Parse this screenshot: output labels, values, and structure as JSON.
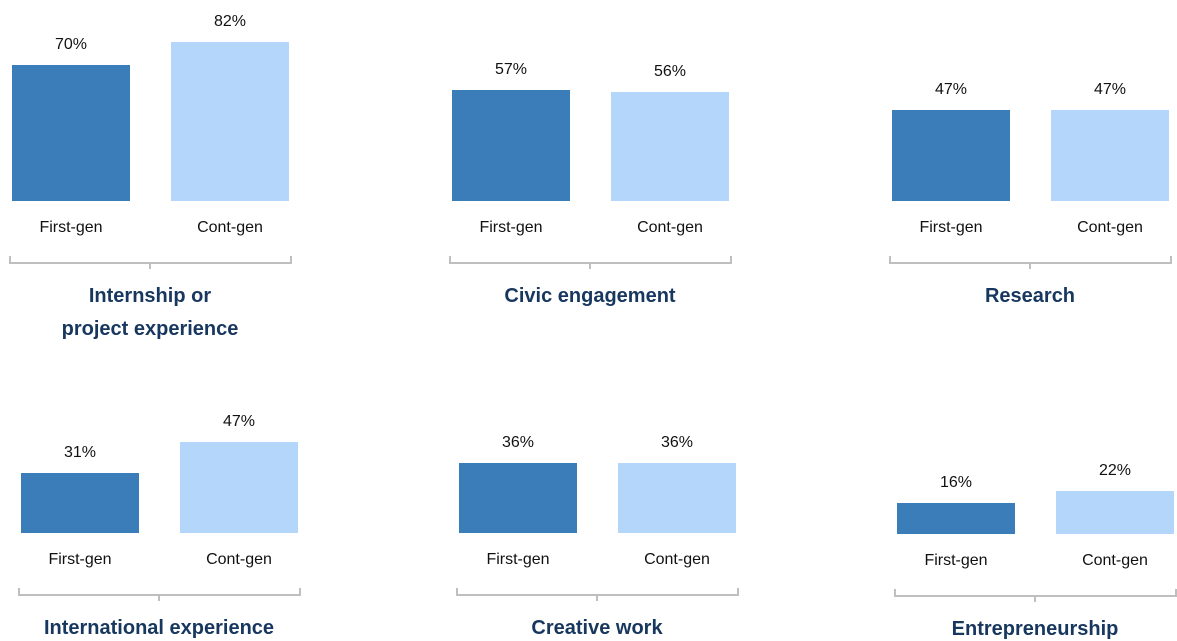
{
  "chart_data": [
    {
      "type": "bar",
      "title": "Internship or\nproject experience",
      "categories": [
        "First-gen",
        "Cont-gen"
      ],
      "values": [
        70,
        82
      ],
      "value_labels": [
        "70%",
        "82%"
      ],
      "colors": [
        "#3a7db8",
        "#b4d6fb"
      ]
    },
    {
      "type": "bar",
      "title": "Civic engagement",
      "categories": [
        "First-gen",
        "Cont-gen"
      ],
      "values": [
        57,
        56
      ],
      "value_labels": [
        "57%",
        "56%"
      ],
      "colors": [
        "#3a7db8",
        "#b4d6fb"
      ]
    },
    {
      "type": "bar",
      "title": "Research",
      "categories": [
        "First-gen",
        "Cont-gen"
      ],
      "values": [
        47,
        47
      ],
      "value_labels": [
        "47%",
        "47%"
      ],
      "colors": [
        "#3a7db8",
        "#b4d6fb"
      ]
    },
    {
      "type": "bar",
      "title": "International experience",
      "categories": [
        "First-gen",
        "Cont-gen"
      ],
      "values": [
        31,
        47
      ],
      "value_labels": [
        "31%",
        "47%"
      ],
      "colors": [
        "#3a7db8",
        "#b4d6fb"
      ]
    },
    {
      "type": "bar",
      "title": "Creative work",
      "categories": [
        "First-gen",
        "Cont-gen"
      ],
      "values": [
        36,
        36
      ],
      "value_labels": [
        "36%",
        "36%"
      ],
      "colors": [
        "#3a7db8",
        "#b4d6fb"
      ]
    },
    {
      "type": "bar",
      "title": "Entrepreneurship",
      "categories": [
        "First-gen",
        "Cont-gen"
      ],
      "values": [
        16,
        22
      ],
      "value_labels": [
        "16%",
        "22%"
      ],
      "colors": [
        "#3a7db8",
        "#b4d6fb"
      ]
    }
  ]
}
